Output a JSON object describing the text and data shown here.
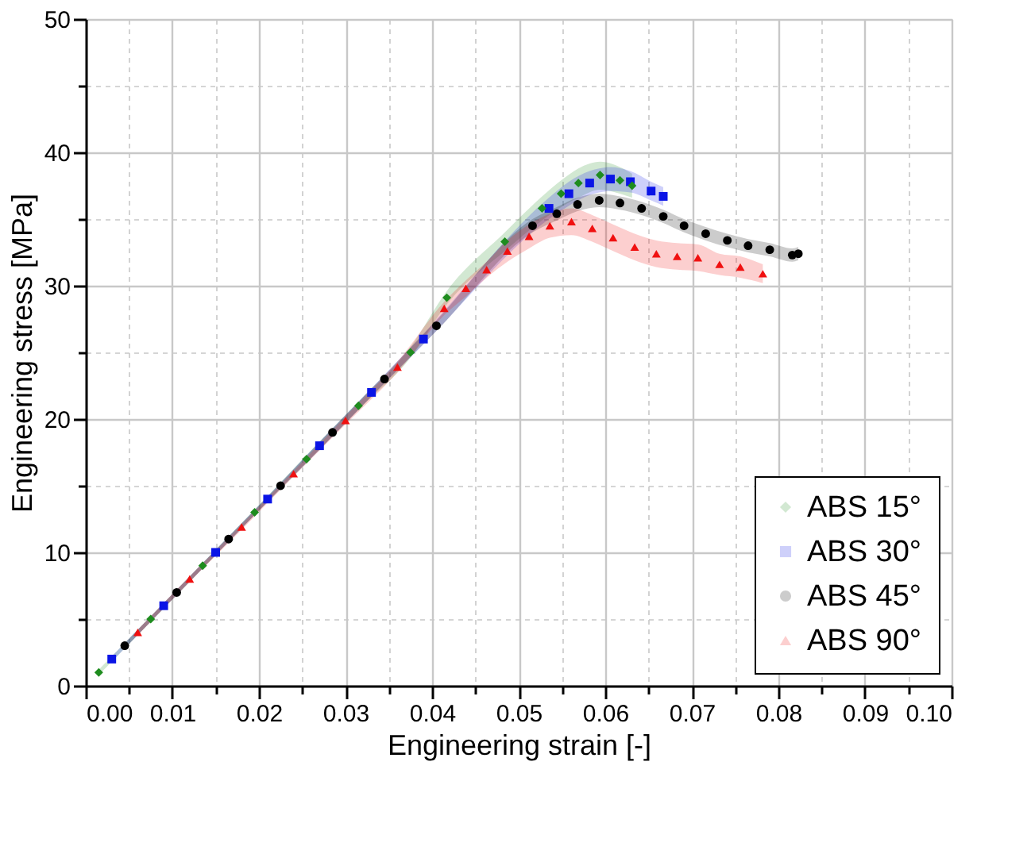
{
  "chart_data": {
    "type": "scatter",
    "xlabel": "Engineering strain [-]",
    "ylabel": "Engineering stress [MPa]",
    "xlim": [
      0,
      0.1
    ],
    "ylim": [
      0,
      50
    ],
    "xticks": [
      "0.00",
      0.01,
      0.02,
      0.03,
      0.04,
      0.05,
      0.06,
      0.07,
      0.08,
      0.09,
      "0.10",
      {
        "value": 0.005,
        "label": null
      },
      {
        "value": 0.015,
        "label": null
      },
      {
        "value": 0.025,
        "label": null
      },
      {
        "value": 0.035,
        "label": null
      },
      {
        "value": 0.045,
        "label": null
      },
      {
        "value": 0.055,
        "label": null
      },
      {
        "value": 0.065,
        "label": null
      },
      {
        "value": 0.075,
        "label": null
      },
      {
        "value": 0.085,
        "label": null
      },
      {
        "value": 0.095,
        "label": null
      }
    ],
    "yticks": [
      0,
      10,
      20,
      30,
      40,
      50,
      {
        "value": 5,
        "label": null
      },
      {
        "value": 15,
        "label": null
      },
      {
        "value": 25,
        "label": null
      },
      {
        "value": 35,
        "label": null
      },
      {
        "value": 45,
        "label": null
      }
    ],
    "grid": true,
    "legend": "bottom right",
    "series": [
      {
        "name": "ABS 15°",
        "color": "#1e8c1e",
        "marker": "diamond",
        "x": [
          0.0015,
          0.0075,
          0.0135,
          0.0195,
          0.0255,
          0.0315,
          0.0375,
          0.0417,
          0.0484,
          0.0527,
          0.0549,
          0.0569,
          0.0594,
          0.0617,
          0.0631
        ],
        "values": [
          1.0,
          5.0,
          9.0,
          13.0,
          17.0,
          21.0,
          25.0,
          29.1,
          33.3,
          35.8,
          36.9,
          37.7,
          38.3,
          37.9,
          37.5
        ],
        "lower": [
          0.8,
          4.8,
          8.8,
          12.8,
          16.7,
          20.7,
          24.6,
          28.6,
          32.6,
          34.9,
          35.9,
          36.6,
          37.2,
          36.9,
          36.6
        ],
        "upper": [
          1.2,
          5.2,
          9.2,
          13.2,
          17.3,
          21.3,
          25.4,
          29.6,
          34.0,
          36.7,
          37.9,
          38.8,
          39.3,
          38.9,
          38.4
        ]
      },
      {
        "name": "ABS 30°",
        "color": "#0a14e6",
        "marker": "square",
        "x": [
          0.003,
          0.009,
          0.015,
          0.021,
          0.027,
          0.033,
          0.039,
          0.0535,
          0.0558,
          0.0582,
          0.0606,
          0.0629,
          0.0653,
          0.0667
        ],
        "values": [
          2.0,
          6.0,
          10.0,
          14.0,
          18.0,
          22.0,
          26.0,
          35.8,
          36.9,
          37.7,
          38.0,
          37.8,
          37.1,
          36.7
        ],
        "lower": [
          1.8,
          5.8,
          9.8,
          13.8,
          17.7,
          21.7,
          25.6,
          35.0,
          36.0,
          36.8,
          37.1,
          37.0,
          36.4,
          36.0
        ],
        "upper": [
          2.2,
          6.2,
          10.2,
          14.2,
          18.3,
          22.3,
          26.4,
          36.6,
          37.8,
          38.6,
          38.9,
          38.6,
          37.8,
          37.4
        ]
      },
      {
        "name": "ABS 45°",
        "color": "#000000",
        "marker": "circle",
        "x": [
          0.0045,
          0.0105,
          0.0165,
          0.0225,
          0.0285,
          0.0345,
          0.0405,
          0.0516,
          0.0544,
          0.0568,
          0.0593,
          0.0617,
          0.0642,
          0.0667,
          0.0691,
          0.0716,
          0.0741,
          0.0765,
          0.079,
          0.0816,
          0.0823
        ],
        "values": [
          3.0,
          7.0,
          11.0,
          15.0,
          19.0,
          23.0,
          27.0,
          34.5,
          35.4,
          36.1,
          36.4,
          36.2,
          35.8,
          35.2,
          34.5,
          33.9,
          33.4,
          33.0,
          32.7,
          32.3,
          32.4
        ],
        "lower": [
          2.8,
          6.8,
          10.8,
          14.8,
          18.7,
          22.7,
          26.6,
          34.0,
          34.9,
          35.6,
          35.9,
          35.7,
          35.3,
          34.7,
          34.0,
          33.4,
          32.9,
          32.5,
          32.2,
          31.8,
          31.9
        ],
        "upper": [
          3.2,
          7.2,
          11.2,
          15.2,
          19.3,
          23.3,
          27.4,
          35.0,
          35.9,
          36.6,
          36.9,
          36.7,
          36.3,
          35.7,
          35.0,
          34.4,
          33.9,
          33.5,
          33.2,
          32.8,
          32.9
        ]
      },
      {
        "name": "ABS 90°",
        "color": "#f01010",
        "marker": "triangle-up",
        "x": [
          0.006,
          0.012,
          0.018,
          0.024,
          0.03,
          0.036,
          0.0414,
          0.0439,
          0.0463,
          0.0487,
          0.0512,
          0.0536,
          0.0561,
          0.0585,
          0.0609,
          0.0634,
          0.0659,
          0.0683,
          0.0707,
          0.0732,
          0.0756,
          0.0782
        ],
        "values": [
          4.0,
          8.0,
          11.9,
          15.9,
          19.9,
          23.9,
          28.3,
          29.8,
          31.2,
          32.6,
          33.7,
          34.5,
          34.8,
          34.3,
          33.6,
          32.9,
          32.4,
          32.2,
          32.1,
          31.6,
          31.4,
          30.9
        ],
        "lower": [
          3.8,
          7.8,
          11.7,
          15.7,
          19.6,
          23.5,
          27.8,
          29.2,
          30.6,
          31.8,
          32.8,
          33.6,
          33.8,
          33.3,
          32.6,
          31.9,
          31.4,
          31.2,
          31.1,
          30.8,
          30.6,
          30.2
        ],
        "upper": [
          4.2,
          8.2,
          12.1,
          16.1,
          20.2,
          24.3,
          28.8,
          30.4,
          31.8,
          33.4,
          34.6,
          35.4,
          35.8,
          35.3,
          34.6,
          33.9,
          33.4,
          33.2,
          33.1,
          32.4,
          32.2,
          31.6
        ]
      }
    ]
  }
}
